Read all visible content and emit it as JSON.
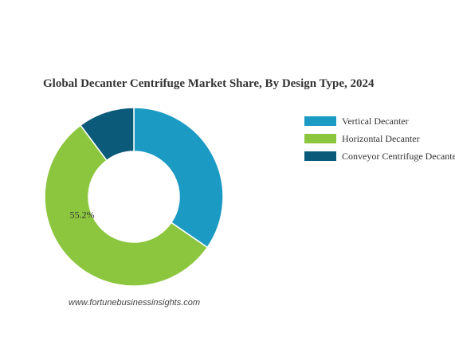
{
  "chart_data": {
    "type": "pie",
    "variant": "donut",
    "title": "Global Decanter Centrifuge Market Share, By Design Type, 2024",
    "categories": [
      "Vertical Decanter",
      "Horizontal Decanter",
      "Conveyor Centrifuge Decanter"
    ],
    "values": [
      34.6,
      55.2,
      10.2
    ],
    "colors": [
      "#1b9ac3",
      "#8cc63f",
      "#0b5a7a"
    ],
    "data_labels": [
      "",
      "55.2%",
      ""
    ],
    "legend_position": "right",
    "start_angle_degrees": 0,
    "direction": "clockwise"
  },
  "footer": {
    "source": "www.fortunebusinessinsights.com"
  }
}
